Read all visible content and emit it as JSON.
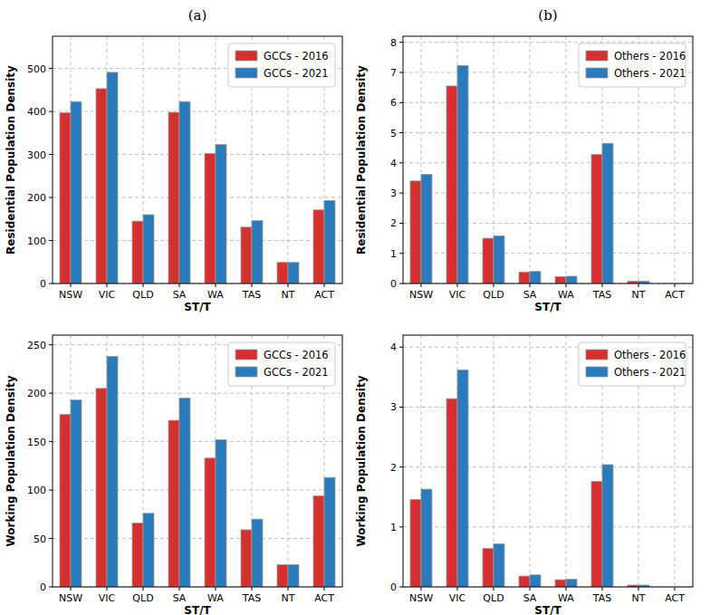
{
  "chart_data": [
    {
      "type": "bar",
      "title": "(a)",
      "x_label": "ST/T",
      "y_label": "Residential Population Density",
      "categories": [
        "NSW",
        "VIC",
        "QLD",
        "SA",
        "WA",
        "TAS",
        "NT",
        "ACT"
      ],
      "series": [
        {
          "name": "GCCs - 2016",
          "color": "#d62f2f",
          "values": [
            397,
            453,
            145,
            398,
            302,
            131,
            49,
            171
          ]
        },
        {
          "name": "GCCs - 2021",
          "color": "#2b7bba",
          "values": [
            423,
            491,
            160,
            423,
            323,
            146,
            49,
            193
          ]
        }
      ],
      "ylim": [
        0,
        575
      ],
      "yticks": [
        0,
        100,
        200,
        300,
        400,
        500
      ],
      "grid": true,
      "legend": "upper right"
    },
    {
      "type": "bar",
      "title": "(b)",
      "x_label": "ST/T",
      "y_label": "Residential Population Density",
      "categories": [
        "NSW",
        "VIC",
        "QLD",
        "SA",
        "WA",
        "TAS",
        "NT",
        "ACT"
      ],
      "series": [
        {
          "name": "Others - 2016",
          "color": "#d62f2f",
          "values": [
            3.4,
            6.55,
            1.5,
            0.38,
            0.23,
            4.28,
            0.08,
            0
          ]
        },
        {
          "name": "Others - 2021",
          "color": "#2b7bba",
          "values": [
            3.62,
            7.23,
            1.58,
            0.4,
            0.24,
            4.65,
            0.08,
            0
          ]
        }
      ],
      "ylim": [
        0,
        8.2
      ],
      "yticks": [
        0,
        1,
        2,
        3,
        4,
        5,
        6,
        7,
        8
      ],
      "grid": true,
      "legend": "upper right"
    },
    {
      "type": "bar",
      "x_label": "ST/T",
      "y_label": "Working Population Density",
      "categories": [
        "NSW",
        "VIC",
        "QLD",
        "SA",
        "WA",
        "TAS",
        "NT",
        "ACT"
      ],
      "series": [
        {
          "name": "GCCs - 2016",
          "color": "#d62f2f",
          "values": [
            178,
            205,
            66,
            172,
            133,
            59,
            23,
            94
          ]
        },
        {
          "name": "GCCs - 2021",
          "color": "#2b7bba",
          "values": [
            193,
            238,
            76,
            195,
            152,
            70,
            23,
            113
          ]
        }
      ],
      "ylim": [
        0,
        260
      ],
      "yticks": [
        0,
        50,
        100,
        150,
        200,
        250
      ],
      "grid": true,
      "legend": "upper right"
    },
    {
      "type": "bar",
      "x_label": "ST/T",
      "y_label": "Working Population Density",
      "categories": [
        "NSW",
        "VIC",
        "QLD",
        "SA",
        "WA",
        "TAS",
        "NT",
        "ACT"
      ],
      "series": [
        {
          "name": "Others - 2016",
          "color": "#d62f2f",
          "values": [
            1.46,
            3.14,
            0.64,
            0.18,
            0.12,
            1.76,
            0.03,
            0
          ]
        },
        {
          "name": "Others - 2021",
          "color": "#2b7bba",
          "values": [
            1.63,
            3.62,
            0.72,
            0.2,
            0.13,
            2.04,
            0.03,
            0
          ]
        }
      ],
      "ylim": [
        0,
        4.2
      ],
      "yticks": [
        0,
        1,
        2,
        3,
        4
      ],
      "grid": true,
      "legend": "upper right"
    }
  ]
}
